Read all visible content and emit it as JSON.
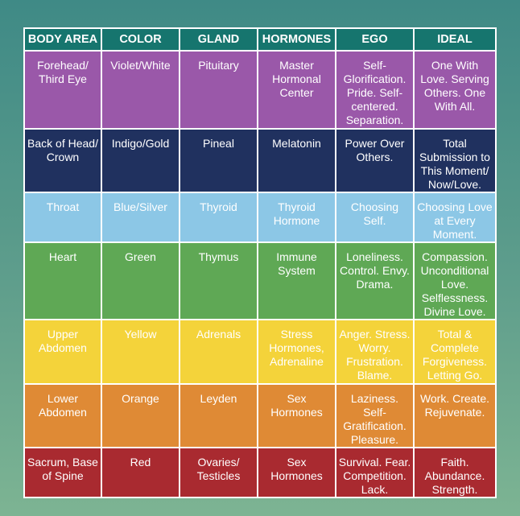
{
  "headers": [
    "BODY AREA",
    "COLOR",
    "GLAND",
    "HORMONES",
    "EGO",
    "IDEAL"
  ],
  "rows": [
    {
      "cells": [
        "Forehead/ Third Eye",
        "Violet/White",
        "Pituitary",
        "Master Hormonal Center",
        "Self-Glorification. Pride. Self-centered. Separation.",
        "One With Love. Serving Others. One With All."
      ],
      "color": "#9a58a9"
    },
    {
      "cells": [
        "Back of Head/ Crown",
        "Indigo/Gold",
        "Pineal",
        "Melatonin",
        "Power Over Others.",
        "Total Submission to This Moment/ Now/Love."
      ],
      "color": "#20315f"
    },
    {
      "cells": [
        "Throat",
        "Blue/Silver",
        "Thyroid",
        "Thyroid Hormone",
        "Choosing Self.",
        "Choosing Love at Every Moment."
      ],
      "color": "#8cc7e6"
    },
    {
      "cells": [
        "Heart",
        "Green",
        "Thymus",
        "Immune System",
        "Loneliness. Control. Envy. Drama.",
        "Compassion. Unconditional Love. Selflessness. Divine Love."
      ],
      "color": "#5fa855"
    },
    {
      "cells": [
        "Upper Abdomen",
        "Yellow",
        "Adrenals",
        "Stress Hormones, Adrenaline",
        "Anger. Stress. Worry. Frustration. Blame.",
        "Total & Complete Forgiveness. Letting Go."
      ],
      "color": "#f4d33a"
    },
    {
      "cells": [
        "Lower Abdomen",
        "Orange",
        "Leyden",
        "Sex Hormones",
        "Laziness. Self-Gratification. Pleasure.",
        "Work. Create. Rejuvenate."
      ],
      "color": "#df8a35"
    },
    {
      "cells": [
        "Sacrum, Base of Spine",
        "Red",
        "Ovaries/ Testicles",
        "Sex Hormones",
        "Survival. Fear. Competition. Lack.",
        "Faith. Abundance. Strength."
      ],
      "color": "#a92a30"
    }
  ]
}
